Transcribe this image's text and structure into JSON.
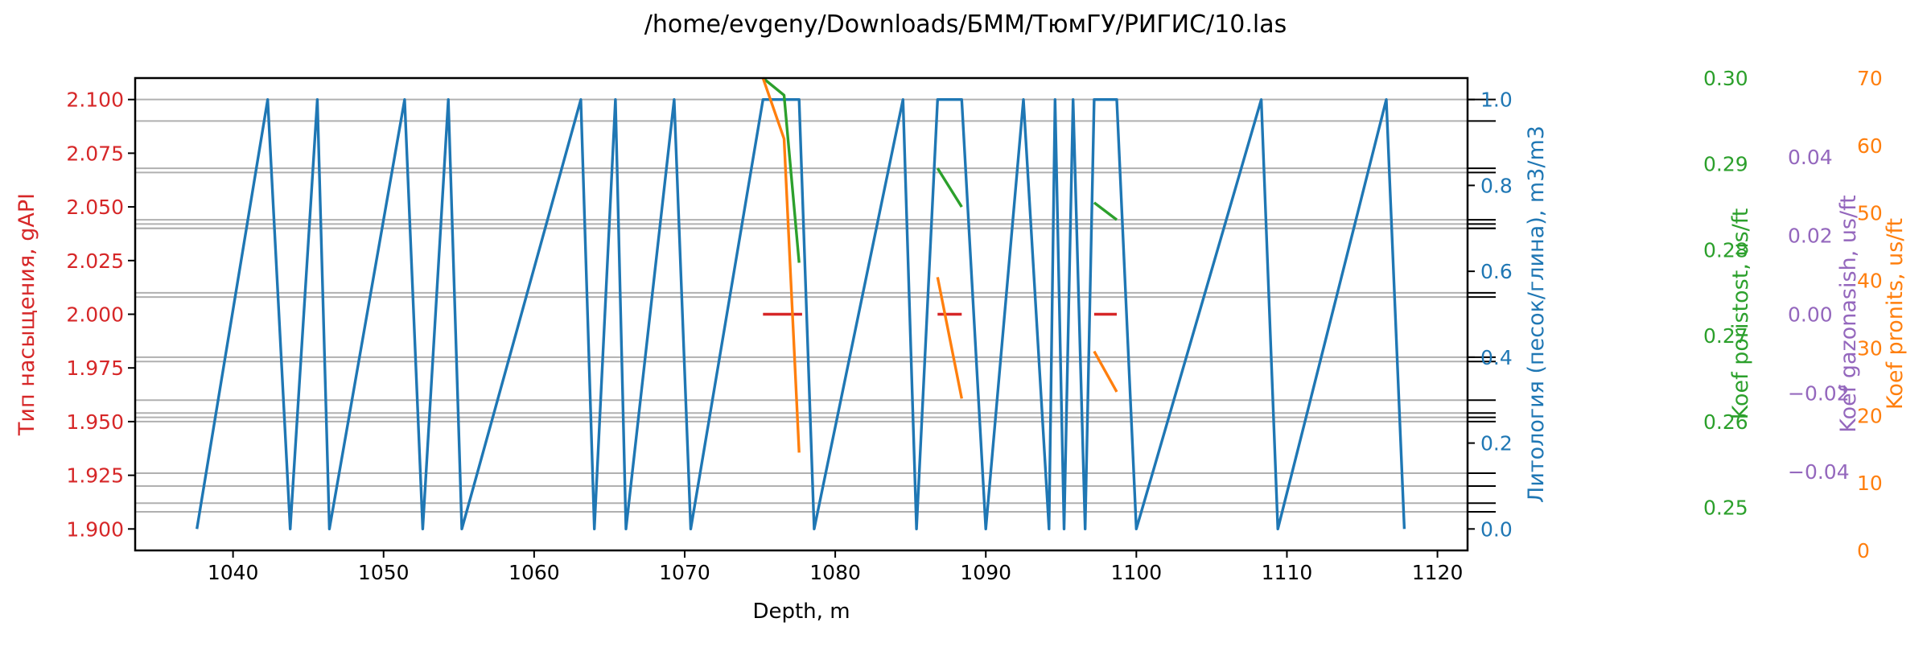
{
  "chart_data": {
    "type": "line",
    "title": "/home/evgeny/Downloads/БММ/ТюмГУ/РИГИС/10.las",
    "xlabel": "Depth, m",
    "xlim": [
      1033.5,
      1122
    ],
    "x_ticks": [
      1040,
      1050,
      1060,
      1070,
      1080,
      1090,
      1100,
      1110,
      1120
    ],
    "grid": "horizontal lines from the lithology axis",
    "axes": [
      {
        "id": "saturation",
        "side": "left",
        "label": "Тип насыщения, gAPI",
        "color": "#d62728",
        "ylim": [
          1.89,
          2.11
        ],
        "ticks": [
          "1.900",
          "1.925",
          "1.950",
          "1.975",
          "2.000",
          "2.025",
          "2.050",
          "2.075",
          "2.100"
        ]
      },
      {
        "id": "lithology",
        "side": "right",
        "label": "Литология (песок/глина), m3/m3",
        "color": "#1f77b4",
        "ylim": [
          -0.05,
          1.05
        ],
        "ticks": [
          "0.0",
          "0.2",
          "0.4",
          "0.6",
          "0.8",
          "1.0"
        ]
      },
      {
        "id": "poristost",
        "side": "right",
        "label": "Koef poristost, us/ft",
        "color": "#2ca02c",
        "ylim": [
          0.245,
          0.3
        ],
        "ticks": [
          "0.25",
          "0.26",
          "0.27",
          "0.28",
          "0.29",
          "0.30"
        ]
      },
      {
        "id": "gazonasish",
        "side": "right",
        "label": "Koef gazonasish, us/ft",
        "color": "#9467bd",
        "ylim": [
          -0.06,
          0.06
        ],
        "ticks": [
          "−0.04",
          "−0.02",
          "0.00",
          "0.02",
          "0.04"
        ]
      },
      {
        "id": "pronits",
        "side": "right",
        "label": "Koef pronits, us/ft",
        "color": "#ff7f0e",
        "ylim": [
          0,
          70
        ],
        "ticks": [
          "0",
          "10",
          "20",
          "30",
          "40",
          "50",
          "60",
          "70"
        ]
      }
    ],
    "gridlines_lithology": [
      1.0,
      0.95,
      0.84,
      0.83,
      0.72,
      0.71,
      0.7,
      0.7,
      0.55,
      0.54,
      0.4,
      0.39,
      0.3,
      0.27,
      0.26,
      0.25,
      0.13,
      0.1,
      0.06,
      0.04
    ],
    "series": [
      {
        "axis": "lithology",
        "color": "#1f77b4",
        "x": [
          1037.6,
          1042.3,
          1043.8,
          1045.6,
          1046.4,
          1051.4,
          1052.6,
          1054.3,
          1055.2,
          1063.1,
          1064.0,
          1065.4,
          1066.1,
          1069.3,
          1070.4,
          1075.2,
          1077.6,
          1078.6,
          1084.5,
          1085.4,
          1086.8,
          1088.4,
          1090.0,
          1092.5,
          1094.2,
          1094.6,
          1095.2,
          1095.8,
          1096.6,
          1097.2,
          1098.7,
          1100.0,
          1108.3,
          1109.4,
          1116.6,
          1117.8
        ],
        "values": [
          0.0,
          1.0,
          0.0,
          1.0,
          0.0,
          1.0,
          0.0,
          1.0,
          0.0,
          1.0,
          0.0,
          1.0,
          0.0,
          1.0,
          0.0,
          1.0,
          1.0,
          0.0,
          1.0,
          0.0,
          1.0,
          1.0,
          0.0,
          1.0,
          0.0,
          1.0,
          0.0,
          1.0,
          0.0,
          1.0,
          1.0,
          0.0,
          1.0,
          0.0,
          1.0,
          0.0
        ]
      },
      {
        "axis": "saturation",
        "color": "#d62728",
        "segments": [
          {
            "x": [
              1075.2,
              1077.8
            ],
            "values": [
              2.0,
              2.0
            ]
          },
          {
            "x": [
              1086.8,
              1088.4
            ],
            "values": [
              2.0,
              2.0
            ]
          },
          {
            "x": [
              1097.2,
              1098.7
            ],
            "values": [
              2.0,
              2.0
            ]
          }
        ]
      },
      {
        "axis": "poristost",
        "color": "#2ca02c",
        "segments": [
          {
            "x": [
              1075.2,
              1076.6,
              1077.6
            ],
            "values": [
              0.3,
              0.298,
              0.2785
            ]
          },
          {
            "x": [
              1086.8,
              1088.4
            ],
            "values": [
              0.2895,
              0.285
            ]
          },
          {
            "x": [
              1097.2,
              1098.7
            ],
            "values": [
              0.2855,
              0.2835
            ]
          }
        ]
      },
      {
        "axis": "pronits",
        "color": "#ff7f0e",
        "segments": [
          {
            "x": [
              1075.2,
              1076.6,
              1077.6
            ],
            "values": [
              70,
              61,
              14.5
            ]
          },
          {
            "x": [
              1086.8,
              1088.4
            ],
            "values": [
              40.5,
              22.5
            ]
          },
          {
            "x": [
              1097.2,
              1098.7
            ],
            "values": [
              29.5,
              23.5
            ]
          }
        ]
      }
    ]
  }
}
